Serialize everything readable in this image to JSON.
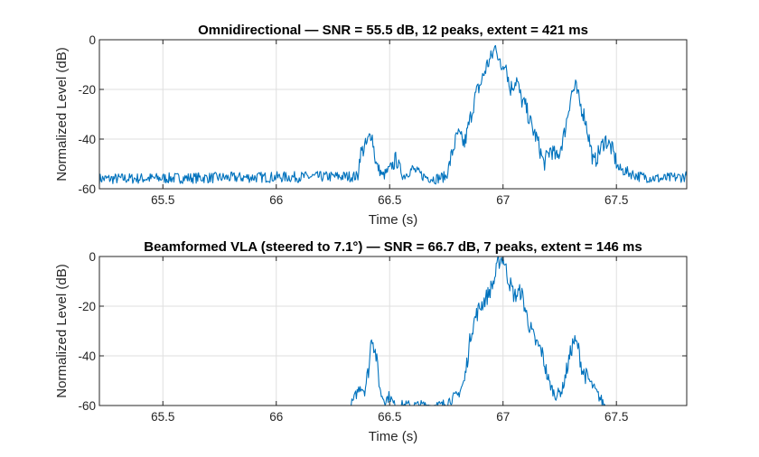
{
  "chart_data": [
    {
      "type": "line",
      "title": "Omnidirectional — SNR = 55.5 dB, 12 peaks, extent = 421 ms",
      "xlabel": "Time (s)",
      "ylabel": "Normalized Level (dB)",
      "xlim": [
        65.22,
        67.81
      ],
      "ylim": [
        -60,
        0
      ],
      "xticks": [
        "65.5",
        "66",
        "66.5",
        "67",
        "67.5"
      ],
      "yticks": [
        "0",
        "-20",
        "-40",
        "-60"
      ],
      "grid": true,
      "color": "#0072bd",
      "series": [
        {
          "x": [
            65.22,
            66.36,
            66.37,
            66.4,
            66.42,
            66.44,
            66.47,
            66.5,
            66.53,
            66.56,
            66.6,
            66.65,
            66.7,
            66.75,
            66.78,
            66.8,
            66.83,
            66.86,
            66.88,
            66.9,
            66.93,
            66.95,
            66.97,
            66.99,
            67.01,
            67.03,
            67.06,
            67.08,
            67.1,
            67.13,
            67.15,
            67.18,
            67.21,
            67.24,
            67.27,
            67.3,
            67.32,
            67.34,
            67.36,
            67.38,
            67.4,
            67.42,
            67.45,
            67.48,
            67.51,
            67.6,
            67.7,
            67.81
          ],
          "y": [
            -56,
            -55,
            -46,
            -42,
            -37,
            -50,
            -55,
            -52,
            -48,
            -55,
            -52,
            -55,
            -56,
            -55,
            -44,
            -38,
            -42,
            -30,
            -22,
            -18,
            -10,
            -7,
            -2,
            -12,
            -8,
            -20,
            -16,
            -24,
            -27,
            -36,
            -40,
            -50,
            -44,
            -48,
            -38,
            -22,
            -19,
            -26,
            -31,
            -40,
            -50,
            -46,
            -40,
            -44,
            -52,
            -55,
            -56,
            -55
          ]
        }
      ]
    },
    {
      "type": "line",
      "title": "Beamformed VLA (steered to 7.1°) — SNR = 66.7 dB, 7 peaks, extent = 146 ms",
      "xlabel": "Time (s)",
      "ylabel": "Normalized Level (dB)",
      "xlim": [
        65.22,
        67.81
      ],
      "ylim": [
        -60,
        0
      ],
      "xticks": [
        "65.5",
        "66",
        "66.5",
        "67",
        "67.5"
      ],
      "yticks": [
        "0",
        "-20",
        "-40",
        "-60"
      ],
      "grid": true,
      "color": "#0072bd",
      "series": [
        {
          "x": [
            66.33,
            66.35,
            66.37,
            66.39,
            66.41,
            66.42,
            66.44,
            66.46,
            66.48,
            66.5,
            66.52,
            66.73,
            66.76,
            66.8,
            66.83,
            66.86,
            66.88,
            66.9,
            66.93,
            66.96,
            66.98,
            67.0,
            67.02,
            67.05,
            67.08,
            67.11,
            67.14,
            67.17,
            67.2,
            67.23,
            67.26,
            67.29,
            67.31,
            67.33,
            67.35,
            67.38,
            67.42,
            67.45
          ],
          "y": [
            -60,
            -56,
            -52,
            -54,
            -44,
            -31,
            -40,
            -55,
            -58,
            -56,
            -60,
            -60,
            -58,
            -56,
            -50,
            -30,
            -24,
            -20,
            -16,
            -10,
            -2,
            0,
            -8,
            -16,
            -14,
            -26,
            -34,
            -38,
            -50,
            -56,
            -54,
            -42,
            -34,
            -36,
            -46,
            -50,
            -56,
            -60
          ]
        }
      ]
    }
  ]
}
